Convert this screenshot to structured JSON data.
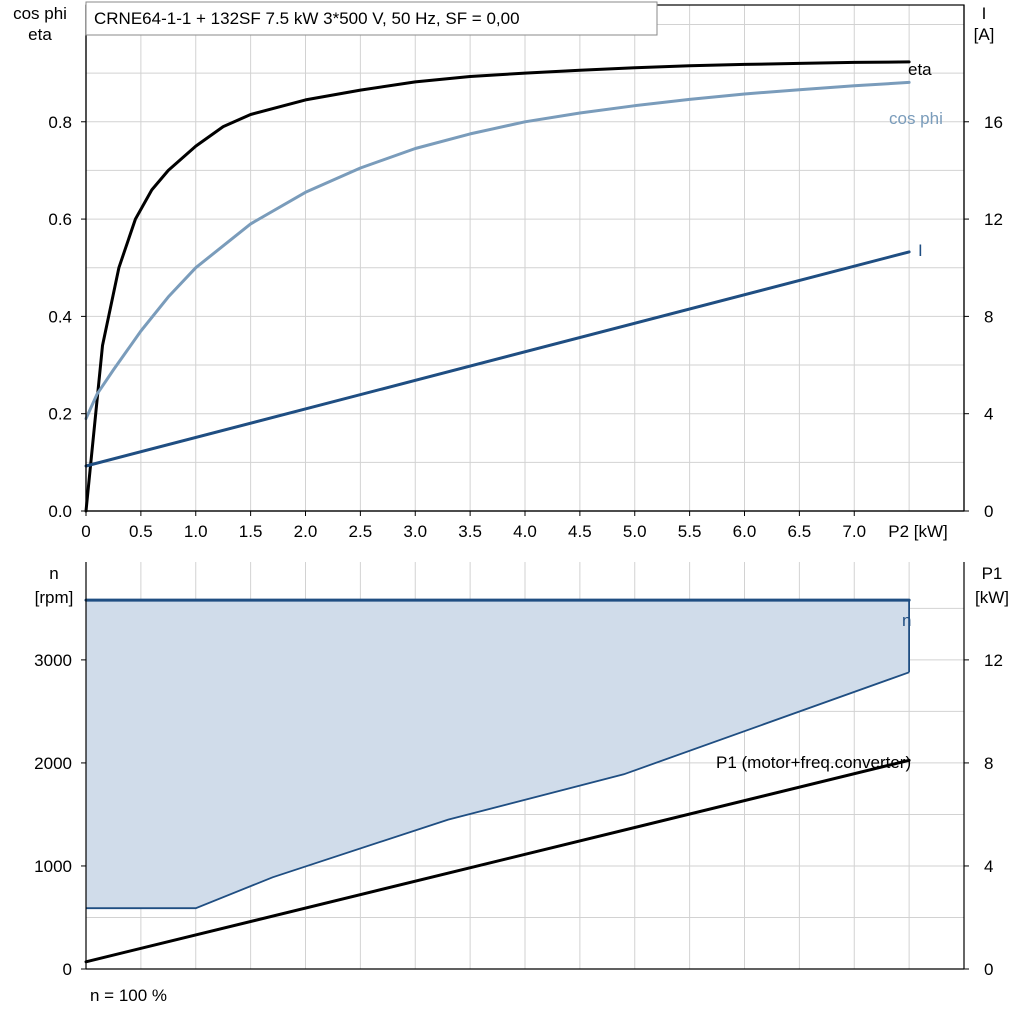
{
  "chart_data": [
    {
      "type": "line",
      "title": "CRNE64-1-1 + 132SF   7.5 kW   3*500 V, 50 Hz, SF = 0,00",
      "x": {
        "label": "P2 [kW]",
        "ticks": [
          "0",
          "0.5",
          "1.0",
          "1.5",
          "2.0",
          "2.5",
          "3.0",
          "3.5",
          "4.0",
          "4.5",
          "5.0",
          "5.5",
          "6.0",
          "6.5",
          "7.0"
        ],
        "lim": [
          0,
          8
        ]
      },
      "y_left": {
        "label": [
          "cos phi",
          "eta"
        ],
        "ticks": [
          "0.0",
          "0.2",
          "0.4",
          "0.6",
          "0.8"
        ],
        "lim": [
          0,
          1.04
        ]
      },
      "y_right": {
        "label": [
          "I",
          "[A]"
        ],
        "ticks": [
          "0",
          "4",
          "8",
          "12",
          "16"
        ],
        "lim": [
          0,
          20.8
        ]
      },
      "grid": true,
      "series": [
        {
          "name": "eta",
          "axis": "left",
          "color": "#000000",
          "points": [
            [
              0,
              0
            ],
            [
              0.15,
              0.34
            ],
            [
              0.3,
              0.5
            ],
            [
              0.45,
              0.6
            ],
            [
              0.6,
              0.66
            ],
            [
              0.75,
              0.7
            ],
            [
              1.0,
              0.75
            ],
            [
              1.25,
              0.79
            ],
            [
              1.5,
              0.815
            ],
            [
              2.0,
              0.845
            ],
            [
              2.5,
              0.865
            ],
            [
              3.0,
              0.882
            ],
            [
              3.5,
              0.893
            ],
            [
              4.0,
              0.9
            ],
            [
              4.5,
              0.906
            ],
            [
              5.0,
              0.911
            ],
            [
              5.5,
              0.915
            ],
            [
              6.0,
              0.918
            ],
            [
              6.5,
              0.92
            ],
            [
              7.0,
              0.922
            ],
            [
              7.5,
              0.923
            ]
          ]
        },
        {
          "name": "cos phi",
          "axis": "left",
          "color": "#7a9cbb",
          "points": [
            [
              0,
              0.19
            ],
            [
              0.1,
              0.24
            ],
            [
              0.25,
              0.29
            ],
            [
              0.5,
              0.37
            ],
            [
              0.75,
              0.44
            ],
            [
              1.0,
              0.5
            ],
            [
              1.5,
              0.59
            ],
            [
              2.0,
              0.655
            ],
            [
              2.5,
              0.705
            ],
            [
              3.0,
              0.745
            ],
            [
              3.5,
              0.775
            ],
            [
              4.0,
              0.8
            ],
            [
              4.5,
              0.818
            ],
            [
              5.0,
              0.833
            ],
            [
              5.5,
              0.846
            ],
            [
              6.0,
              0.857
            ],
            [
              6.5,
              0.866
            ],
            [
              7.0,
              0.874
            ],
            [
              7.5,
              0.881
            ]
          ]
        },
        {
          "name": "I",
          "axis": "right",
          "color": "#1f4e82",
          "points": [
            [
              0,
              1.85
            ],
            [
              7.5,
              10.65
            ]
          ]
        }
      ]
    },
    {
      "type": "area",
      "x": {
        "lim": [
          0,
          8
        ]
      },
      "y_left": {
        "label": [
          "n",
          "[rpm]"
        ],
        "ticks": [
          "0",
          "1000",
          "2000",
          "3000"
        ],
        "lim": [
          0,
          3950
        ]
      },
      "y_right": {
        "label": [
          "P1",
          "[kW]"
        ],
        "ticks": [
          "0",
          "4",
          "8",
          "12"
        ],
        "lim": [
          0,
          15.8
        ]
      },
      "grid": true,
      "region": {
        "color": "#d0dcea",
        "edge_color": "#1f4e82",
        "upper": [
          [
            0,
            3580
          ],
          [
            7.5,
            3580
          ]
        ],
        "lower": [
          [
            0,
            590
          ],
          [
            1.0,
            590
          ],
          [
            1.7,
            890
          ],
          [
            3.3,
            1450
          ],
          [
            4.9,
            1890
          ],
          [
            7.5,
            2880
          ]
        ]
      },
      "series": [
        {
          "name": "n",
          "axis": "left",
          "color": "#1f4e82",
          "points": [
            [
              0,
              3580
            ],
            [
              7.5,
              3580
            ]
          ]
        },
        {
          "name": "P1 (motor+freq.converter)",
          "axis": "right",
          "color": "#000000",
          "points": [
            [
              0,
              0.28
            ],
            [
              7.5,
              8.1
            ]
          ]
        }
      ],
      "annotations": [
        "n = 100 %"
      ]
    }
  ]
}
